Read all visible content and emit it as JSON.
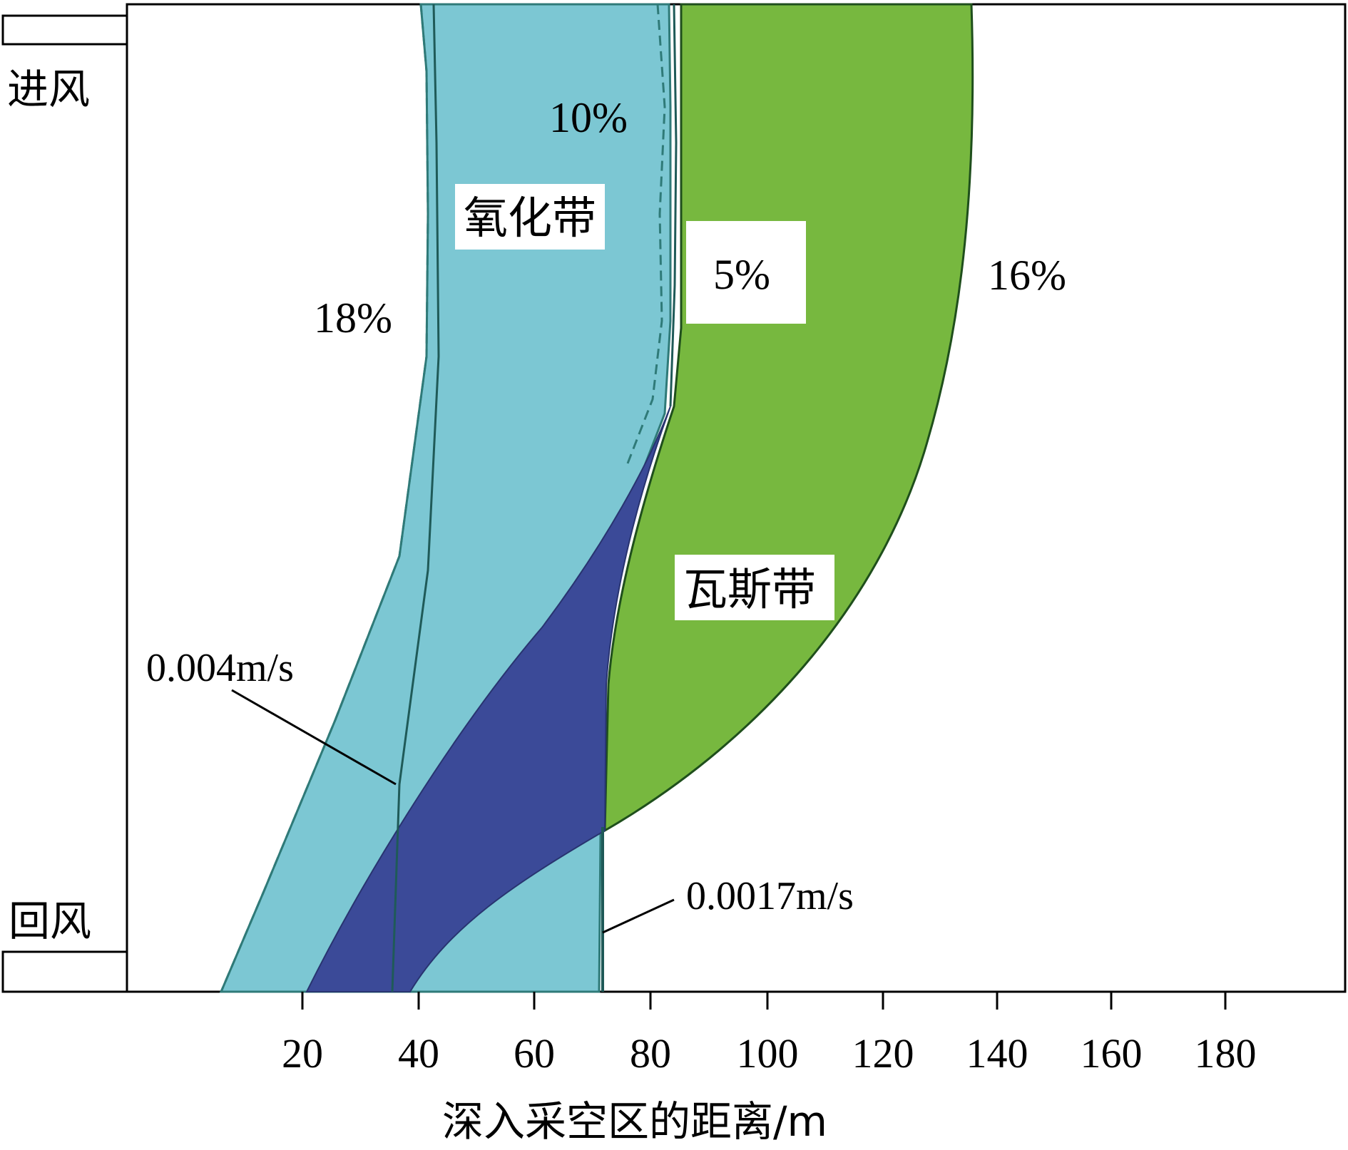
{
  "diagram": {
    "labels": {
      "intake": "进风",
      "return": "回风",
      "oxidation_zone": "氧化带",
      "gas_zone": "瓦斯带",
      "o2_18": "18%",
      "o2_10": "10%",
      "o2_5": "5%",
      "o2_16": "16%",
      "velocity_high": "0.004m/s",
      "velocity_low": "0.0017m/s"
    },
    "x_axis": {
      "label": "深入采空区的距离/m",
      "ticks": [
        "20",
        "40",
        "60",
        "80",
        "100",
        "120",
        "140",
        "160",
        "180"
      ]
    },
    "colors": {
      "oxidation_fill": "#7cc7d3",
      "gas_fill": "#77b83f",
      "overlap_fill": "#3b4a98",
      "outline": "#1f5a58"
    }
  }
}
